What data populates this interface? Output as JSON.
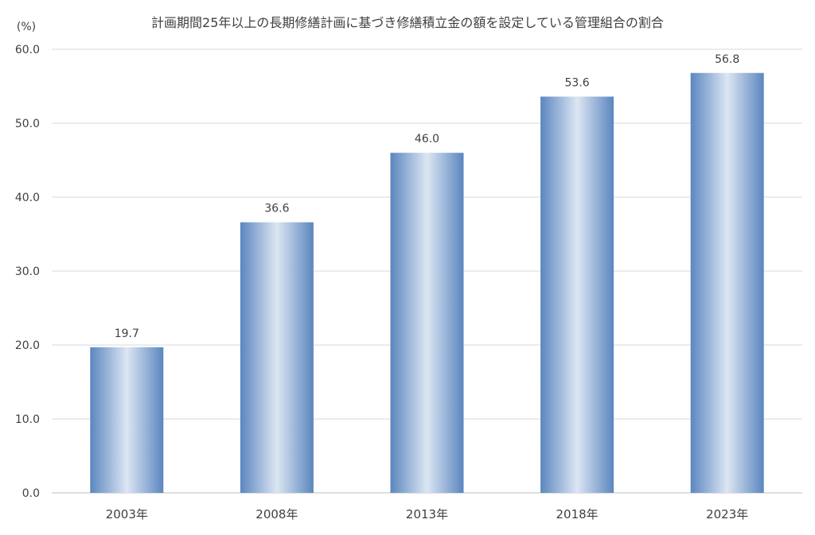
{
  "chart_data": {
    "type": "bar",
    "title": "計画期間25年以上の長期修繕計画に基づき修繕積立金の額を設定している管理組合の割合",
    "ylabel": "(%)",
    "xlabel": "",
    "categories": [
      "2003年",
      "2008年",
      "2013年",
      "2018年",
      "2023年"
    ],
    "values": [
      19.7,
      36.6,
      46.0,
      53.6,
      56.8
    ],
    "value_labels": [
      "19.7",
      "36.6",
      "46.0",
      "53.6",
      "56.8"
    ],
    "ylim": [
      0,
      60
    ],
    "yticks": [
      "0.0",
      "10.0",
      "20.0",
      "30.0",
      "40.0",
      "50.0",
      "60.0"
    ],
    "grid": true,
    "legend": "none",
    "colors": {
      "bar_edge": "#5b86bf",
      "bar_center": "#dce6f3",
      "grid": "#d9d9d9",
      "axis": "#bfbfbf",
      "text": "#404040"
    }
  }
}
